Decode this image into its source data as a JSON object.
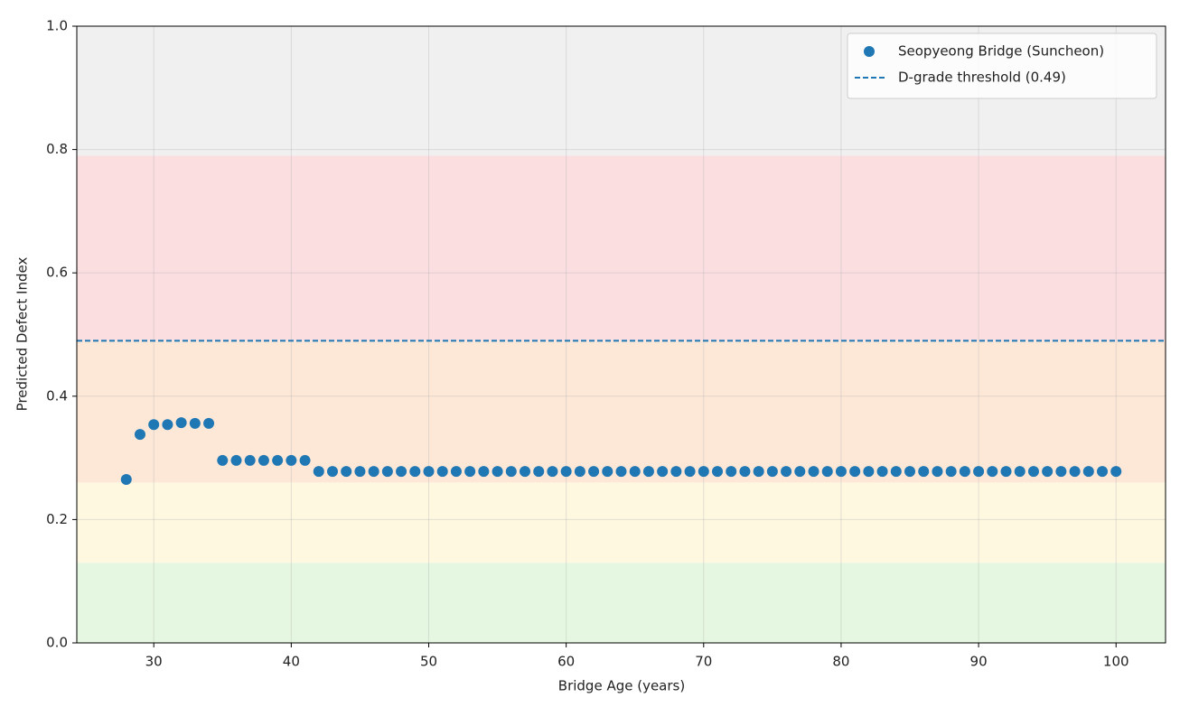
{
  "chart_data": {
    "type": "scatter",
    "xlabel": "Bridge Age (years)",
    "ylabel": "Predicted Defect Index",
    "xlim": [
      24.4,
      103.6
    ],
    "ylim": [
      0,
      1
    ],
    "xticks": [
      30,
      40,
      50,
      60,
      70,
      80,
      90,
      100
    ],
    "yticks": [
      {
        "value": 0,
        "label": "0.0"
      },
      {
        "value": 0.2,
        "label": "0.2"
      },
      {
        "value": 0.4,
        "label": "0.4"
      },
      {
        "value": 0.6,
        "label": "0.6"
      },
      {
        "value": 0.8,
        "label": "0.8"
      },
      {
        "value": 1,
        "label": "1.0"
      }
    ],
    "grid": true,
    "legend": "upper right",
    "bands": [
      {
        "from": 0,
        "to": 0.13,
        "color": "#e5f7e0"
      },
      {
        "from": 0.13,
        "to": 0.26,
        "color": "#fef8e1"
      },
      {
        "from": 0.26,
        "to": 0.49,
        "color": "#fde8d8"
      },
      {
        "from": 0.49,
        "to": 0.79,
        "color": "#fbdfe0"
      },
      {
        "from": 0.79,
        "to": 1,
        "color": "#f0f0f0"
      }
    ],
    "series": [
      {
        "name": "Seopyeong Bridge (Suncheon)",
        "color": "#1f77b4",
        "x": [
          28,
          29,
          30,
          31,
          32,
          33,
          34,
          35,
          36,
          37,
          38,
          39,
          40,
          41,
          42,
          43,
          44,
          45,
          46,
          47,
          48,
          49,
          50,
          51,
          52,
          53,
          54,
          55,
          56,
          57,
          58,
          59,
          60,
          61,
          62,
          63,
          64,
          65,
          66,
          67,
          68,
          69,
          70,
          71,
          72,
          73,
          74,
          75,
          76,
          77,
          78,
          79,
          80,
          81,
          82,
          83,
          84,
          85,
          86,
          87,
          88,
          89,
          90,
          91,
          92,
          93,
          94,
          95,
          96,
          97,
          98,
          99,
          100
        ],
        "values": [
          0.265,
          0.338,
          0.354,
          0.354,
          0.357,
          0.356,
          0.356,
          0.296,
          0.296,
          0.296,
          0.296,
          0.296,
          0.296,
          0.296,
          0.278,
          0.278,
          0.278,
          0.278,
          0.278,
          0.278,
          0.278,
          0.278,
          0.278,
          0.278,
          0.278,
          0.278,
          0.278,
          0.278,
          0.278,
          0.278,
          0.278,
          0.278,
          0.278,
          0.278,
          0.278,
          0.278,
          0.278,
          0.278,
          0.278,
          0.278,
          0.278,
          0.278,
          0.278,
          0.278,
          0.278,
          0.278,
          0.278,
          0.278,
          0.278,
          0.278,
          0.278,
          0.278,
          0.278,
          0.278,
          0.278,
          0.278,
          0.278,
          0.278,
          0.278,
          0.278,
          0.278,
          0.278,
          0.278,
          0.278,
          0.278,
          0.278,
          0.278,
          0.278,
          0.278,
          0.278,
          0.278,
          0.278,
          0.278
        ]
      }
    ],
    "hlines": [
      {
        "name": "D-grade threshold (0.49)",
        "value": 0.49,
        "color": "#1f77b4",
        "style": "dashed"
      }
    ]
  }
}
